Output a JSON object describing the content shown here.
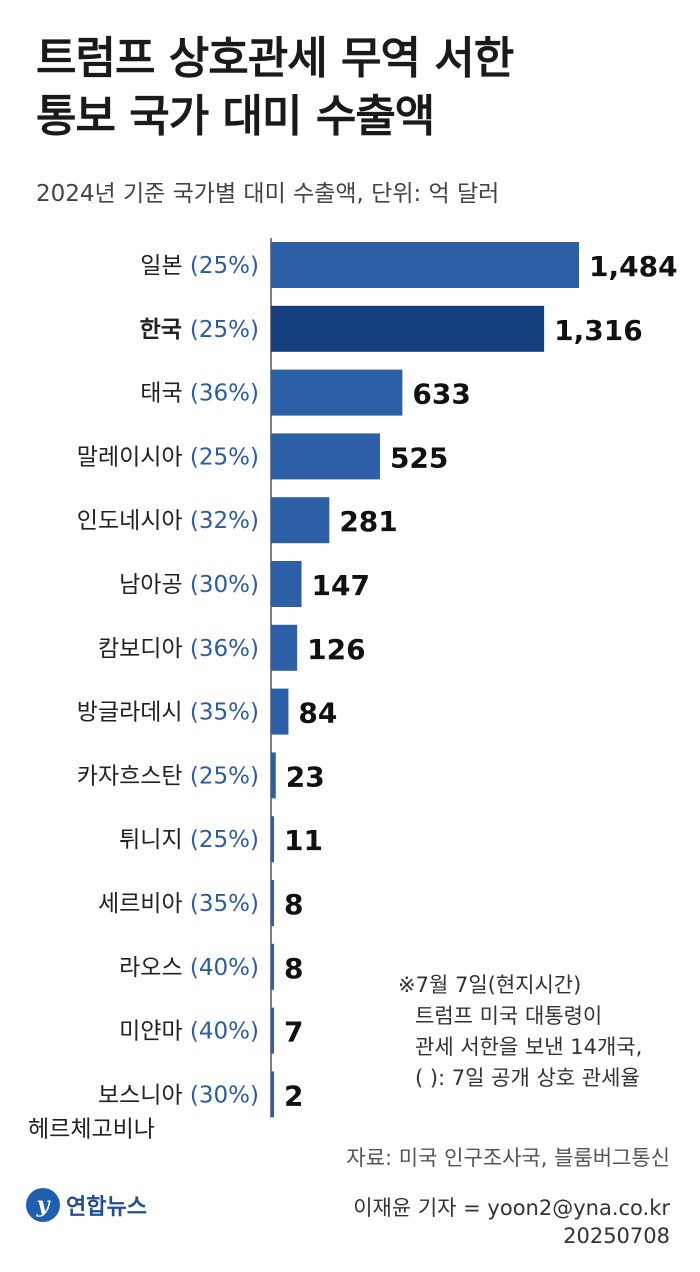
{
  "title_lines": [
    "트럼프 상호관세 무역 서한",
    "통보 국가 대미 수출액"
  ],
  "subtitle": "2024년 기준 국가별 대미 수출액, 단위: 억 달러",
  "colors": {
    "bar": "#2c5fa6",
    "highlight": "#153f7e",
    "rate_text": "#2a5ca8",
    "axis": "#555555"
  },
  "chart_data": {
    "type": "bar",
    "orientation": "horizontal",
    "categories": [
      "일본",
      "한국",
      "태국",
      "말레이시아",
      "인도네시아",
      "남아공",
      "캄보디아",
      "방글라데시",
      "카자흐스탄",
      "튀니지",
      "세르비아",
      "라오스",
      "미얀마",
      "보스니아 헤르체고비나"
    ],
    "rates": [
      "(25%)",
      "(25%)",
      "(36%)",
      "(25%)",
      "(32%)",
      "(30%)",
      "(36%)",
      "(35%)",
      "(25%)",
      "(25%)",
      "(35%)",
      "(40%)",
      "(40%)",
      "(30%)"
    ],
    "values": [
      1484,
      1316,
      633,
      525,
      281,
      147,
      126,
      84,
      23,
      11,
      8,
      8,
      7,
      2
    ],
    "value_labels": [
      "1,484",
      "1,316",
      "633",
      "525",
      "281",
      "147",
      "126",
      "84",
      "23",
      "11",
      "8",
      "8",
      "7",
      "2"
    ],
    "highlight": "한국",
    "xlim": [
      0,
      1570
    ]
  },
  "note": [
    "※7월 7일(현지시간)",
    "트럼프 미국 대통령이",
    "관세 서한을 보낸 14개국,",
    "(   ): 7일 공개 상호 관세율"
  ],
  "source": "자료: 미국 인구조사국, 블룸버그통신",
  "logo": {
    "mark": "y",
    "name": "연합뉴스"
  },
  "byline": {
    "reporter": "이재윤 기자 = yoon2@yna.co.kr",
    "date": "20250708"
  }
}
